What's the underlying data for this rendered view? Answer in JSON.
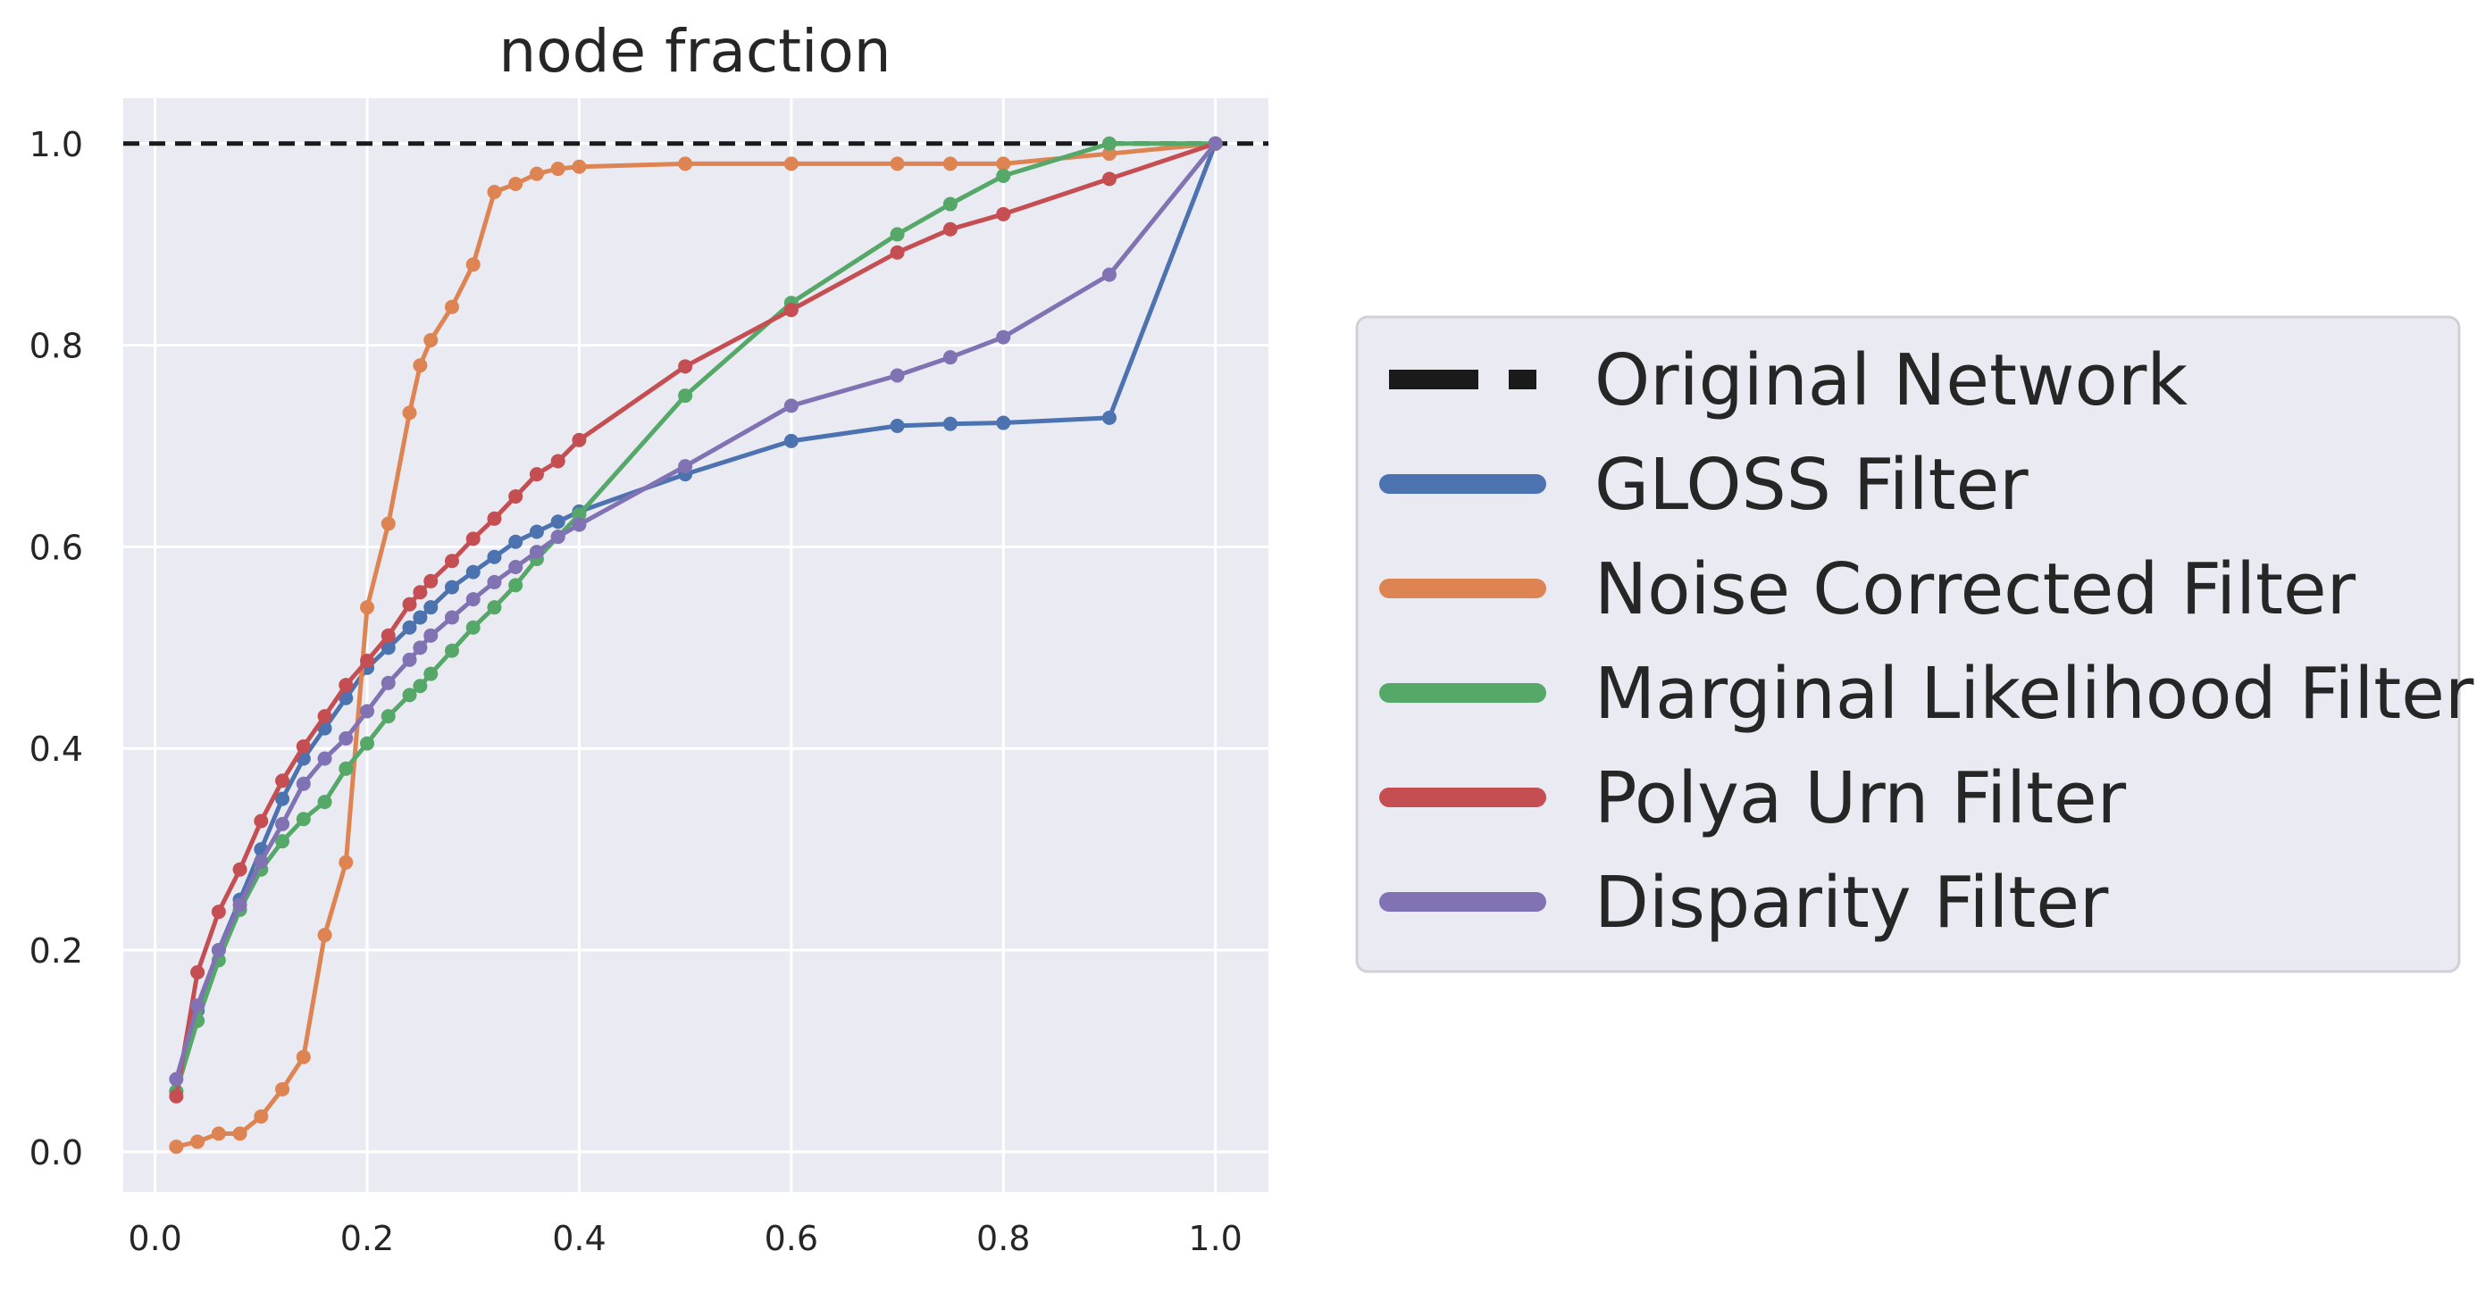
{
  "chart_data": {
    "type": "line",
    "title": "node fraction",
    "xlabel": "",
    "ylabel": "",
    "xlim": [
      -0.03,
      1.05
    ],
    "ylim": [
      -0.04,
      1.045
    ],
    "xticks": [
      0.0,
      0.2,
      0.4,
      0.6,
      0.8,
      1.0
    ],
    "xtick_labels": [
      "0.0",
      "0.2",
      "0.4",
      "0.6",
      "0.8",
      "1.0"
    ],
    "yticks": [
      0.0,
      0.2,
      0.4,
      0.6,
      0.8,
      1.0
    ],
    "ytick_labels": [
      "0.0",
      "0.2",
      "0.4",
      "0.6",
      "0.8",
      "1.0"
    ],
    "grid": true,
    "legend_position": "outside-right",
    "reference_line": {
      "name": "Original Network",
      "y": 1.0,
      "color": "#1a1a1a",
      "style": "dashed"
    },
    "series": [
      {
        "name": "GLOSS Filter",
        "color": "#4c72b0",
        "x": [
          0.02,
          0.04,
          0.06,
          0.08,
          0.1,
          0.12,
          0.14,
          0.16,
          0.18,
          0.2,
          0.22,
          0.24,
          0.25,
          0.26,
          0.28,
          0.3,
          0.32,
          0.34,
          0.36,
          0.38,
          0.4,
          0.5,
          0.6,
          0.7,
          0.75,
          0.8,
          0.9,
          1.0
        ],
        "y": [
          0.06,
          0.14,
          0.2,
          0.25,
          0.3,
          0.35,
          0.39,
          0.42,
          0.45,
          0.48,
          0.5,
          0.52,
          0.53,
          0.54,
          0.56,
          0.575,
          0.59,
          0.605,
          0.615,
          0.625,
          0.635,
          0.672,
          0.705,
          0.72,
          0.722,
          0.723,
          0.728,
          1.0
        ]
      },
      {
        "name": "Noise Corrected Filter",
        "color": "#dd8452",
        "x": [
          0.02,
          0.04,
          0.06,
          0.08,
          0.1,
          0.12,
          0.14,
          0.16,
          0.18,
          0.2,
          0.22,
          0.24,
          0.25,
          0.26,
          0.28,
          0.3,
          0.32,
          0.34,
          0.36,
          0.38,
          0.4,
          0.5,
          0.6,
          0.7,
          0.75,
          0.8,
          0.9,
          1.0
        ],
        "y": [
          0.005,
          0.01,
          0.018,
          0.018,
          0.035,
          0.062,
          0.094,
          0.215,
          0.287,
          0.54,
          0.623,
          0.733,
          0.78,
          0.805,
          0.838,
          0.88,
          0.952,
          0.96,
          0.97,
          0.975,
          0.977,
          0.98,
          0.98,
          0.98,
          0.98,
          0.98,
          0.99,
          1.0
        ]
      },
      {
        "name": "Marginal Likelihood Filter",
        "color": "#55a868",
        "x": [
          0.02,
          0.04,
          0.06,
          0.08,
          0.1,
          0.12,
          0.14,
          0.16,
          0.18,
          0.2,
          0.22,
          0.24,
          0.25,
          0.26,
          0.28,
          0.3,
          0.32,
          0.34,
          0.36,
          0.38,
          0.4,
          0.5,
          0.6,
          0.7,
          0.75,
          0.8,
          0.9,
          1.0
        ],
        "y": [
          0.06,
          0.13,
          0.19,
          0.24,
          0.28,
          0.308,
          0.33,
          0.347,
          0.38,
          0.405,
          0.432,
          0.453,
          0.462,
          0.474,
          0.497,
          0.52,
          0.54,
          0.562,
          0.588,
          0.61,
          0.632,
          0.75,
          0.842,
          0.91,
          0.94,
          0.968,
          1.0,
          1.0
        ]
      },
      {
        "name": "Polya Urn Filter",
        "color": "#c44e52",
        "x": [
          0.02,
          0.04,
          0.06,
          0.08,
          0.1,
          0.12,
          0.14,
          0.16,
          0.18,
          0.2,
          0.22,
          0.24,
          0.25,
          0.26,
          0.28,
          0.3,
          0.32,
          0.34,
          0.36,
          0.38,
          0.4,
          0.5,
          0.6,
          0.7,
          0.75,
          0.8,
          0.9,
          1.0
        ],
        "y": [
          0.055,
          0.178,
          0.238,
          0.28,
          0.328,
          0.368,
          0.402,
          0.432,
          0.463,
          0.487,
          0.512,
          0.543,
          0.555,
          0.566,
          0.586,
          0.608,
          0.628,
          0.65,
          0.672,
          0.685,
          0.706,
          0.779,
          0.835,
          0.892,
          0.915,
          0.93,
          0.965,
          1.0
        ]
      },
      {
        "name": "Disparity Filter",
        "color": "#8172b3",
        "x": [
          0.02,
          0.04,
          0.06,
          0.08,
          0.1,
          0.12,
          0.14,
          0.16,
          0.18,
          0.2,
          0.22,
          0.24,
          0.25,
          0.26,
          0.28,
          0.3,
          0.32,
          0.34,
          0.36,
          0.38,
          0.4,
          0.5,
          0.6,
          0.7,
          0.75,
          0.8,
          0.9,
          1.0
        ],
        "y": [
          0.072,
          0.145,
          0.2,
          0.245,
          0.288,
          0.325,
          0.365,
          0.39,
          0.41,
          0.437,
          0.465,
          0.488,
          0.5,
          0.512,
          0.53,
          0.548,
          0.565,
          0.58,
          0.595,
          0.61,
          0.622,
          0.68,
          0.74,
          0.77,
          0.788,
          0.808,
          0.87,
          1.0
        ]
      }
    ]
  }
}
